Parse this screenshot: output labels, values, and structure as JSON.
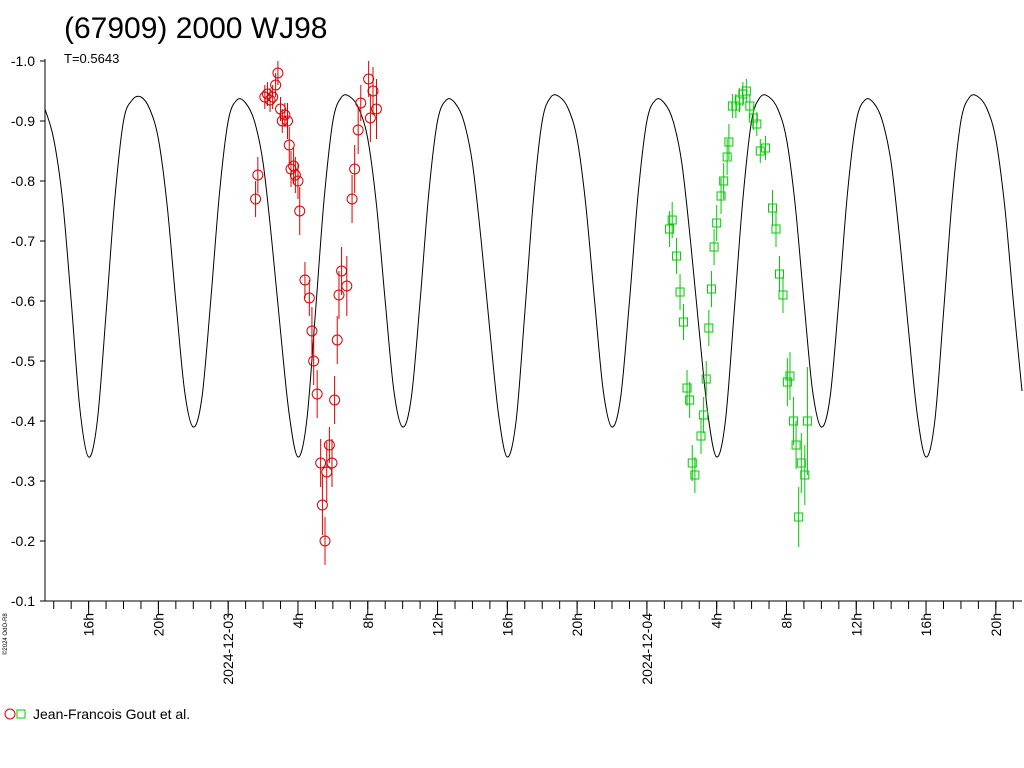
{
  "chart_data": {
    "type": "scatter",
    "title": "(67909) 2000 WJ98",
    "subtitle": "T=0.5643",
    "credit": "©2024 OdO-R8",
    "ylim": [
      -1.0,
      -0.1
    ],
    "y_ticks": [
      "-1.0",
      "-0.9",
      "-0.8",
      "-0.7",
      "-0.6",
      "-0.5",
      "-0.4",
      "-0.3",
      "-0.2",
      "-0.1"
    ],
    "x_range_hours": [
      -10.5,
      45.5
    ],
    "x_ticks": [
      {
        "hour": -8,
        "label": "16h"
      },
      {
        "hour": -4,
        "label": "20h"
      },
      {
        "hour": 0,
        "label": "2024-12-03"
      },
      {
        "hour": 4,
        "label": "4h"
      },
      {
        "hour": 8,
        "label": "8h"
      },
      {
        "hour": 12,
        "label": "12h"
      },
      {
        "hour": 16,
        "label": "16h"
      },
      {
        "hour": 20,
        "label": "20h"
      },
      {
        "hour": 24,
        "label": "2024-12-04"
      },
      {
        "hour": 28,
        "label": "4h"
      },
      {
        "hour": 32,
        "label": "8h"
      },
      {
        "hour": 36,
        "label": "12h"
      },
      {
        "hour": 40,
        "label": "16h"
      },
      {
        "hour": 44,
        "label": "20h"
      }
    ],
    "period_days": 0.5643,
    "fit_curve": [
      [
        -10.5,
        -0.92
      ],
      [
        -10.0,
        -0.87
      ],
      [
        -9.5,
        -0.77
      ],
      [
        -9.0,
        -0.6
      ],
      [
        -8.5,
        -0.42
      ],
      [
        -8.0,
        -0.34
      ],
      [
        -7.5,
        -0.4
      ],
      [
        -7.0,
        -0.58
      ],
      [
        -6.5,
        -0.77
      ],
      [
        -6.0,
        -0.9
      ],
      [
        -5.5,
        -0.935
      ],
      [
        -5.0,
        -0.94
      ],
      [
        -4.5,
        -0.92
      ],
      [
        -4.0,
        -0.87
      ],
      [
        -3.5,
        -0.76
      ],
      [
        -3.0,
        -0.6
      ],
      [
        -2.5,
        -0.45
      ],
      [
        -2.0,
        -0.39
      ],
      [
        -1.5,
        -0.44
      ],
      [
        -1.0,
        -0.6
      ],
      [
        -0.5,
        -0.78
      ],
      [
        0.0,
        -0.9
      ],
      [
        0.5,
        -0.935
      ],
      [
        1.0,
        -0.93
      ],
      [
        1.5,
        -0.9
      ],
      [
        2.0,
        -0.83
      ],
      [
        2.5,
        -0.7
      ],
      [
        3.0,
        -0.55
      ],
      [
        3.5,
        -0.41
      ],
      [
        4.0,
        -0.34
      ],
      [
        4.5,
        -0.4
      ],
      [
        5.0,
        -0.58
      ],
      [
        5.5,
        -0.77
      ],
      [
        6.0,
        -0.9
      ],
      [
        6.5,
        -0.94
      ],
      [
        7.0,
        -0.94
      ],
      [
        7.5,
        -0.92
      ],
      [
        8.0,
        -0.87
      ],
      [
        8.5,
        -0.76
      ],
      [
        9.0,
        -0.6
      ],
      [
        9.5,
        -0.45
      ],
      [
        10.0,
        -0.39
      ],
      [
        10.5,
        -0.44
      ],
      [
        11.0,
        -0.6
      ],
      [
        11.5,
        -0.78
      ],
      [
        12.0,
        -0.9
      ],
      [
        12.5,
        -0.935
      ],
      [
        13.0,
        -0.93
      ],
      [
        13.5,
        -0.9
      ],
      [
        14.0,
        -0.83
      ],
      [
        14.5,
        -0.7
      ],
      [
        15.0,
        -0.55
      ],
      [
        15.5,
        -0.41
      ],
      [
        16.0,
        -0.34
      ],
      [
        16.5,
        -0.4
      ],
      [
        17.0,
        -0.58
      ],
      [
        17.5,
        -0.77
      ],
      [
        18.0,
        -0.9
      ],
      [
        18.5,
        -0.94
      ],
      [
        19.0,
        -0.94
      ],
      [
        19.5,
        -0.92
      ],
      [
        20.0,
        -0.87
      ],
      [
        20.5,
        -0.76
      ],
      [
        21.0,
        -0.6
      ],
      [
        21.5,
        -0.45
      ],
      [
        22.0,
        -0.39
      ],
      [
        22.5,
        -0.44
      ],
      [
        23.0,
        -0.6
      ],
      [
        23.5,
        -0.78
      ],
      [
        24.0,
        -0.9
      ],
      [
        24.5,
        -0.935
      ],
      [
        25.0,
        -0.93
      ],
      [
        25.5,
        -0.9
      ],
      [
        26.0,
        -0.83
      ],
      [
        26.5,
        -0.7
      ],
      [
        27.0,
        -0.55
      ],
      [
        27.5,
        -0.41
      ],
      [
        28.0,
        -0.34
      ],
      [
        28.5,
        -0.4
      ],
      [
        29.0,
        -0.58
      ],
      [
        29.5,
        -0.77
      ],
      [
        30.0,
        -0.9
      ],
      [
        30.5,
        -0.94
      ],
      [
        31.0,
        -0.94
      ],
      [
        31.5,
        -0.92
      ],
      [
        32.0,
        -0.87
      ],
      [
        32.5,
        -0.76
      ],
      [
        33.0,
        -0.6
      ],
      [
        33.5,
        -0.45
      ],
      [
        34.0,
        -0.39
      ],
      [
        34.5,
        -0.44
      ],
      [
        35.0,
        -0.6
      ],
      [
        35.5,
        -0.78
      ],
      [
        36.0,
        -0.9
      ],
      [
        36.5,
        -0.935
      ],
      [
        37.0,
        -0.93
      ],
      [
        37.5,
        -0.9
      ],
      [
        38.0,
        -0.83
      ],
      [
        38.5,
        -0.7
      ],
      [
        39.0,
        -0.55
      ],
      [
        39.5,
        -0.41
      ],
      [
        40.0,
        -0.34
      ],
      [
        40.5,
        -0.4
      ],
      [
        41.0,
        -0.58
      ],
      [
        41.5,
        -0.77
      ],
      [
        42.0,
        -0.9
      ],
      [
        42.5,
        -0.94
      ],
      [
        43.0,
        -0.94
      ],
      [
        43.5,
        -0.92
      ],
      [
        44.0,
        -0.87
      ],
      [
        44.5,
        -0.76
      ],
      [
        45.0,
        -0.6
      ],
      [
        45.5,
        -0.45
      ]
    ],
    "series": [
      {
        "name": "Jean-Francois Gout et al.",
        "color": "#dd0000",
        "marker": "circle",
        "points": [
          [
            1.57,
            -0.77,
            0.03
          ],
          [
            1.7,
            -0.81,
            0.03
          ],
          [
            2.1,
            -0.94,
            0.02
          ],
          [
            2.25,
            -0.945,
            0.02
          ],
          [
            2.4,
            -0.935,
            0.02
          ],
          [
            2.55,
            -0.94,
            0.02
          ],
          [
            2.72,
            -0.96,
            0.02
          ],
          [
            2.85,
            -0.98,
            0.02
          ],
          [
            3.0,
            -0.92,
            0.02
          ],
          [
            3.1,
            -0.9,
            0.02
          ],
          [
            3.25,
            -0.91,
            0.02
          ],
          [
            3.4,
            -0.9,
            0.03
          ],
          [
            3.5,
            -0.86,
            0.03
          ],
          [
            3.6,
            -0.82,
            0.03
          ],
          [
            3.75,
            -0.825,
            0.03
          ],
          [
            3.85,
            -0.81,
            0.03
          ],
          [
            4.0,
            -0.8,
            0.03
          ],
          [
            4.1,
            -0.75,
            0.04
          ],
          [
            4.4,
            -0.635,
            0.03
          ],
          [
            4.65,
            -0.605,
            0.03
          ],
          [
            4.8,
            -0.55,
            0.04
          ],
          [
            4.9,
            -0.5,
            0.04
          ],
          [
            5.1,
            -0.445,
            0.04
          ],
          [
            5.3,
            -0.33,
            0.04
          ],
          [
            5.4,
            -0.26,
            0.05
          ],
          [
            5.55,
            -0.2,
            0.04
          ],
          [
            5.65,
            -0.315,
            0.05
          ],
          [
            5.8,
            -0.36,
            0.03
          ],
          [
            5.95,
            -0.33,
            0.04
          ],
          [
            6.1,
            -0.435,
            0.04
          ],
          [
            6.25,
            -0.535,
            0.04
          ],
          [
            6.35,
            -0.61,
            0.04
          ],
          [
            6.5,
            -0.65,
            0.04
          ],
          [
            6.8,
            -0.625,
            0.05
          ],
          [
            7.1,
            -0.77,
            0.04
          ],
          [
            7.25,
            -0.82,
            0.04
          ],
          [
            7.45,
            -0.885,
            0.04
          ],
          [
            7.6,
            -0.93,
            0.03
          ],
          [
            8.05,
            -0.97,
            0.03
          ],
          [
            8.15,
            -0.905,
            0.04
          ],
          [
            8.3,
            -0.95,
            0.04
          ],
          [
            8.5,
            -0.92,
            0.05
          ]
        ]
      },
      {
        "name": "",
        "color": "#00cc00",
        "marker": "square",
        "points": [
          [
            25.3,
            -0.72,
            0.03
          ],
          [
            25.45,
            -0.735,
            0.03
          ],
          [
            25.7,
            -0.675,
            0.03
          ],
          [
            25.9,
            -0.615,
            0.03
          ],
          [
            26.1,
            -0.565,
            0.03
          ],
          [
            26.3,
            -0.455,
            0.03
          ],
          [
            26.45,
            -0.435,
            0.03
          ],
          [
            26.6,
            -0.33,
            0.03
          ],
          [
            26.75,
            -0.31,
            0.03
          ],
          [
            27.1,
            -0.375,
            0.03
          ],
          [
            27.25,
            -0.41,
            0.03
          ],
          [
            27.4,
            -0.47,
            0.03
          ],
          [
            27.55,
            -0.555,
            0.03
          ],
          [
            27.7,
            -0.62,
            0.03
          ],
          [
            27.85,
            -0.69,
            0.03
          ],
          [
            28.0,
            -0.73,
            0.03
          ],
          [
            28.25,
            -0.775,
            0.03
          ],
          [
            28.4,
            -0.8,
            0.03
          ],
          [
            28.6,
            -0.84,
            0.03
          ],
          [
            28.7,
            -0.865,
            0.03
          ],
          [
            28.9,
            -0.925,
            0.02
          ],
          [
            29.1,
            -0.925,
            0.02
          ],
          [
            29.3,
            -0.935,
            0.02
          ],
          [
            29.5,
            -0.945,
            0.02
          ],
          [
            29.7,
            -0.95,
            0.02
          ],
          [
            29.9,
            -0.925,
            0.02
          ],
          [
            30.1,
            -0.905,
            0.02
          ],
          [
            30.3,
            -0.895,
            0.02
          ],
          [
            30.5,
            -0.85,
            0.02
          ],
          [
            30.8,
            -0.855,
            0.02
          ],
          [
            31.2,
            -0.755,
            0.03
          ],
          [
            31.4,
            -0.72,
            0.03
          ],
          [
            31.6,
            -0.645,
            0.03
          ],
          [
            31.8,
            -0.61,
            0.03
          ],
          [
            32.05,
            -0.465,
            0.04
          ],
          [
            32.2,
            -0.475,
            0.04
          ],
          [
            32.4,
            -0.4,
            0.04
          ],
          [
            32.55,
            -0.36,
            0.04
          ],
          [
            32.7,
            -0.24,
            0.05
          ],
          [
            32.85,
            -0.33,
            0.05
          ],
          [
            33.05,
            -0.31,
            0.05
          ],
          [
            33.2,
            -0.4,
            0.09
          ]
        ]
      }
    ]
  }
}
